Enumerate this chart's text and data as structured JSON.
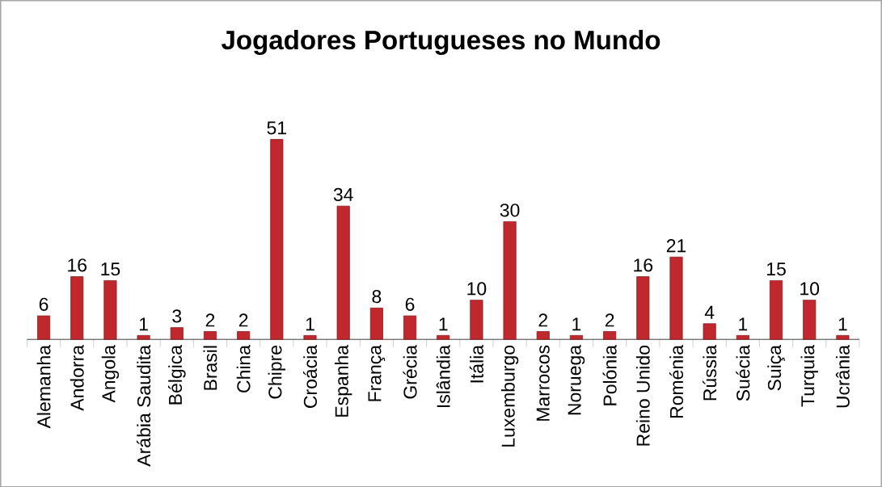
{
  "chart_data": {
    "type": "bar",
    "title": "Jogadores Portugueses no Mundo",
    "categories": [
      "Alemanha",
      "Andorra",
      "Angola",
      "Arábia Saudita",
      "Bélgica",
      "Brasil",
      "China",
      "Chipre",
      "Croácia",
      "Espanha",
      "França",
      "Grécia",
      "Islândia",
      "Itália",
      "Luxemburgo",
      "Marrocos",
      "Noruega",
      "Polónia",
      "Reino Unido",
      "Roménia",
      "Rússia",
      "Suécia",
      "Suiça",
      "Turquia",
      "Ucrânia"
    ],
    "values": [
      6,
      16,
      15,
      1,
      3,
      2,
      2,
      51,
      1,
      34,
      8,
      6,
      1,
      10,
      30,
      2,
      1,
      2,
      16,
      21,
      4,
      1,
      15,
      10,
      1
    ],
    "value_labels": [
      "6",
      "16",
      "15",
      "1",
      "3",
      "2",
      "2",
      "51",
      "1",
      "34",
      "8",
      "6",
      "1",
      "10",
      "30",
      "2",
      "1",
      "2",
      "16",
      "21",
      "4",
      "1",
      "15",
      "10",
      "1"
    ],
    "color": "#c0282d",
    "tick_labels": "x"
  }
}
